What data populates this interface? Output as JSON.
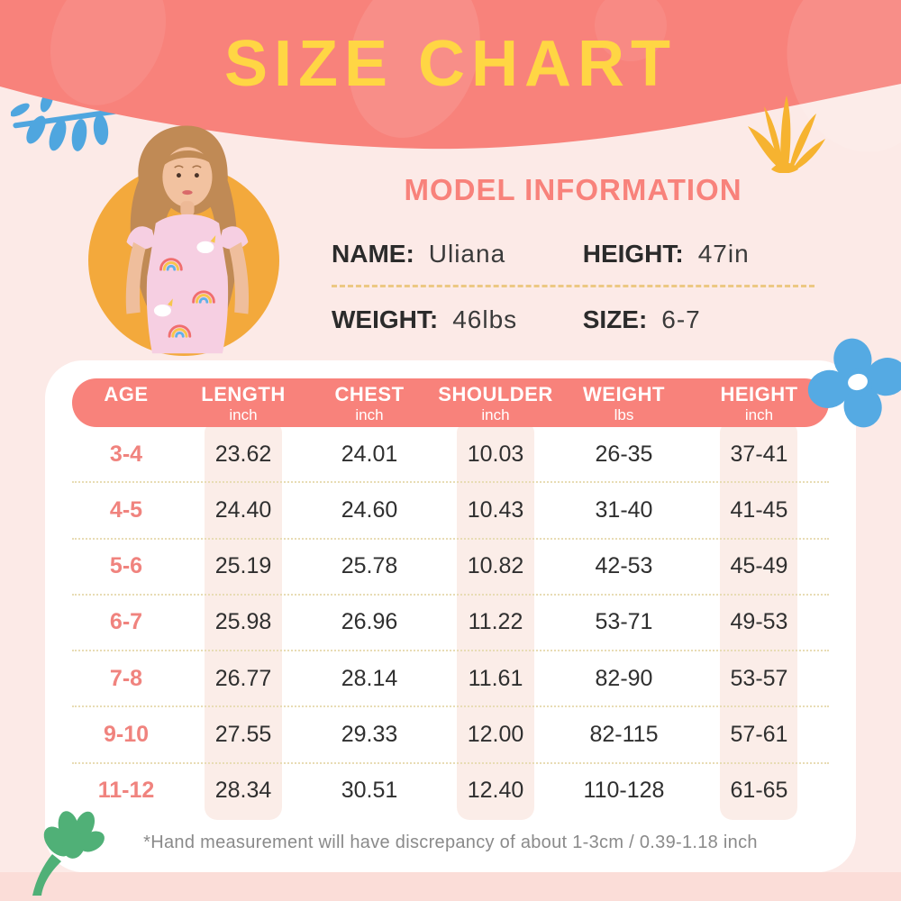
{
  "title": "SIZE CHART",
  "model_info": {
    "heading": "MODEL INFORMATION",
    "fields": [
      {
        "label": "NAME:",
        "value": "Uliana"
      },
      {
        "label": "HEIGHT:",
        "value": "47in"
      },
      {
        "label": "WEIGHT:",
        "value": "46lbs"
      },
      {
        "label": "SIZE:",
        "value": "6-7"
      }
    ]
  },
  "chart_data": {
    "type": "table",
    "columns": [
      {
        "label": "AGE",
        "unit": ""
      },
      {
        "label": "LENGTH",
        "unit": "inch"
      },
      {
        "label": "CHEST",
        "unit": "inch"
      },
      {
        "label": "SHOULDER",
        "unit": "inch"
      },
      {
        "label": "WEIGHT",
        "unit": "lbs"
      },
      {
        "label": "HEIGHT",
        "unit": "inch"
      }
    ],
    "rows": [
      [
        "3-4",
        "23.62",
        "24.01",
        "10.03",
        "26-35",
        "37-41"
      ],
      [
        "4-5",
        "24.40",
        "24.60",
        "10.43",
        "31-40",
        "41-45"
      ],
      [
        "5-6",
        "25.19",
        "25.78",
        "10.82",
        "42-53",
        "45-49"
      ],
      [
        "6-7",
        "25.98",
        "26.96",
        "11.22",
        "53-71",
        "49-53"
      ],
      [
        "7-8",
        "26.77",
        "28.14",
        "11.61",
        "82-90",
        "53-57"
      ],
      [
        "9-10",
        "27.55",
        "29.33",
        "12.00",
        "82-115",
        "57-61"
      ],
      [
        "11-12",
        "28.34",
        "30.51",
        "12.40",
        "110-128",
        "61-65"
      ]
    ]
  },
  "footnote": "*Hand measurement will have discrepancy of about 1-3cm / 0.39-1.18 inch",
  "colors": {
    "header": "#F8827B",
    "title": "#FFD644",
    "page_bg": "#FCEAE7",
    "card_bg": "#FFFFFF",
    "stripe": "#FBEDE8",
    "age_text": "#F0837E",
    "photo_circle": "#F3A93C",
    "deco_blue": "#4FA6DF",
    "deco_green": "#50B077",
    "deco_yellow": "#F6B330"
  },
  "decorations": [
    "branch-icon",
    "grass-icon",
    "flower-icon",
    "leaf-icon"
  ]
}
